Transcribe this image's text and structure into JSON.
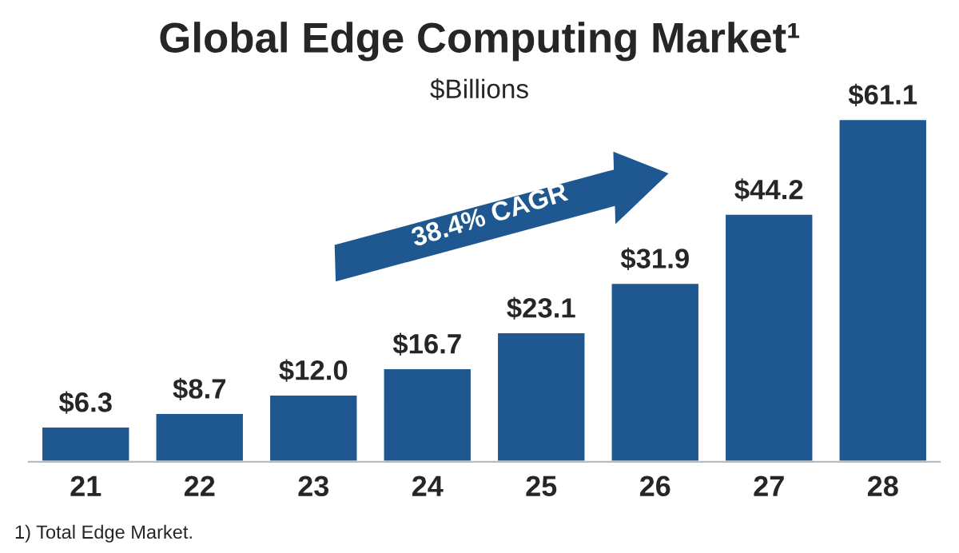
{
  "chart_data": {
    "type": "bar",
    "title": "Global Edge Computing Market¹",
    "subtitle": "$Billions",
    "categories": [
      "21",
      "22",
      "23",
      "24",
      "25",
      "26",
      "27",
      "28"
    ],
    "values": [
      6.3,
      8.7,
      12.0,
      16.7,
      23.1,
      31.9,
      44.2,
      61.1
    ],
    "value_labels": [
      "$6.3",
      "$8.7",
      "$12.0",
      "$16.7",
      "$23.1",
      "$31.9",
      "$44.2",
      "$61.1"
    ],
    "color": "#1f5890",
    "annotations": [
      "38.4% CAGR",
      "1) Total Edge Market."
    ]
  }
}
